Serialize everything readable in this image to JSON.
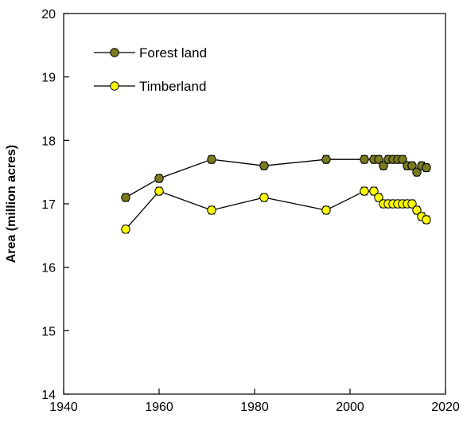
{
  "chart_data": {
    "type": "line",
    "title": "",
    "xlabel": "",
    "ylabel": "Area (million acres)",
    "xlim": [
      1940,
      2020
    ],
    "ylim": [
      14,
      20
    ],
    "xticks": [
      1940,
      1960,
      1980,
      2000,
      2020
    ],
    "yticks": [
      14,
      15,
      16,
      17,
      18,
      19,
      20
    ],
    "grid": false,
    "legend_position": "top-left",
    "series": [
      {
        "name": "Forest land",
        "color": "#7a7a1e",
        "x": [
          1953,
          1960,
          1971,
          1982,
          1995,
          2003,
          2005,
          2006,
          2007,
          2008,
          2009,
          2010,
          2011,
          2012,
          2013,
          2014,
          2015,
          2016
        ],
        "y": [
          17.1,
          17.4,
          17.7,
          17.6,
          17.7,
          17.7,
          17.7,
          17.7,
          17.6,
          17.7,
          17.7,
          17.7,
          17.7,
          17.6,
          17.6,
          17.5,
          17.6,
          17.57
        ],
        "err": 0.06
      },
      {
        "name": "Timberland",
        "color": "#ffff00",
        "x": [
          1953,
          1960,
          1971,
          1982,
          1995,
          2003,
          2005,
          2006,
          2007,
          2008,
          2009,
          2010,
          2011,
          2012,
          2013,
          2014,
          2015,
          2016
        ],
        "y": [
          16.6,
          17.2,
          16.9,
          17.1,
          16.9,
          17.2,
          17.2,
          17.1,
          17.0,
          17.0,
          17.0,
          17.0,
          17.0,
          17.0,
          17.0,
          16.9,
          16.8,
          16.75
        ],
        "err": 0.06
      }
    ]
  }
}
